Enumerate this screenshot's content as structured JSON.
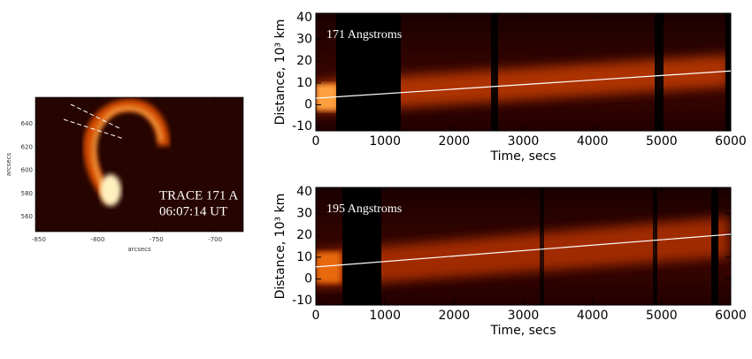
{
  "chart_data": [
    {
      "type": "image",
      "xlabel": "arcsecs",
      "ylabel": "arcsecs",
      "xlim": [
        -853,
        -676
      ],
      "ylim": [
        547,
        663
      ],
      "xticks": [
        -850,
        -800,
        -750,
        -700
      ],
      "yticks": [
        560,
        580,
        600,
        620,
        640
      ],
      "annotations": [
        "TRACE 171 A",
        "06:07:14 UT"
      ]
    },
    {
      "type": "line",
      "xlabel": "Time, secs",
      "ylabel": "Distance, 10³ km",
      "annotation": "171 Angstroms",
      "xlim": [
        0,
        6000
      ],
      "ylim": [
        -12,
        42
      ],
      "xticks": [
        0,
        1000,
        2000,
        3000,
        4000,
        5000,
        6000
      ],
      "yticks": [
        -10,
        0,
        10,
        20,
        30,
        40
      ],
      "series": [
        {
          "color": "#ffffff",
          "x": [
            0,
            6000
          ],
          "values": [
            3,
            15.5
          ]
        }
      ]
    },
    {
      "type": "line",
      "xlabel": "Time, secs",
      "ylabel": "Distance, 10³ km",
      "annotation": "195 Angstroms",
      "xlim": [
        0,
        6000
      ],
      "ylim": [
        -12,
        42
      ],
      "xticks": [
        0,
        1000,
        2000,
        3000,
        4000,
        5000,
        6000
      ],
      "yticks": [
        -10,
        0,
        10,
        20,
        30,
        40
      ],
      "series": [
        {
          "color": "#ffffff",
          "x": [
            0,
            6000
          ],
          "values": [
            5.5,
            20.5
          ]
        }
      ]
    }
  ]
}
